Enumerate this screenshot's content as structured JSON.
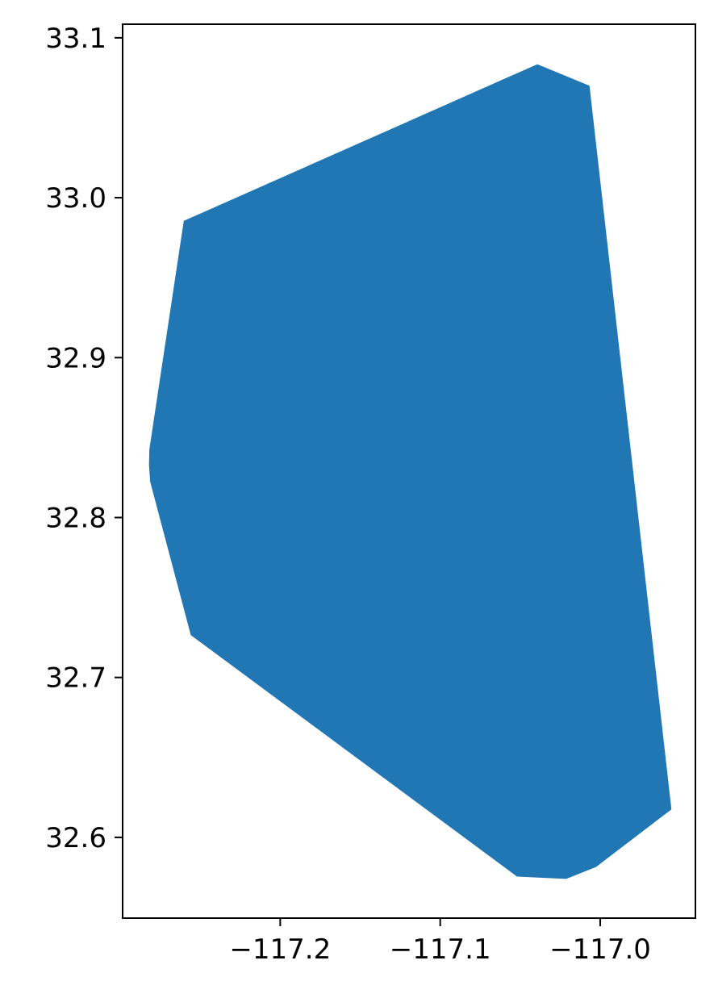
{
  "chart_data": {
    "type": "area",
    "title": "",
    "xlabel": "",
    "ylabel": "",
    "xlim": [
      -117.2985,
      -116.9405
    ],
    "ylim": [
      32.5495,
      33.1085
    ],
    "grid": false,
    "legend": "none",
    "fill_color": "#2077b4",
    "x_ticks": [
      {
        "value": -117.2,
        "label": "−117.2"
      },
      {
        "value": -117.1,
        "label": "−117.1"
      },
      {
        "value": -117.0,
        "label": "−117.0"
      }
    ],
    "y_ticks": [
      {
        "value": 32.6,
        "label": "32.6"
      },
      {
        "value": 32.7,
        "label": "32.7"
      },
      {
        "value": 32.8,
        "label": "32.8"
      },
      {
        "value": 32.9,
        "label": "32.9"
      },
      {
        "value": 33.0,
        "label": "33.0"
      },
      {
        "value": 33.1,
        "label": "33.1"
      }
    ],
    "polygon": [
      [
        -117.2603,
        32.9855
      ],
      [
        -117.0393,
        33.0835
      ],
      [
        -117.0067,
        33.07
      ],
      [
        -116.9555,
        32.6175
      ],
      [
        -117.0026,
        32.5815
      ],
      [
        -117.0213,
        32.574
      ],
      [
        -117.052,
        32.5755
      ],
      [
        -117.2559,
        32.7265
      ],
      [
        -117.2813,
        32.8225
      ],
      [
        -117.282,
        32.833
      ],
      [
        -117.2818,
        32.8425
      ]
    ]
  }
}
